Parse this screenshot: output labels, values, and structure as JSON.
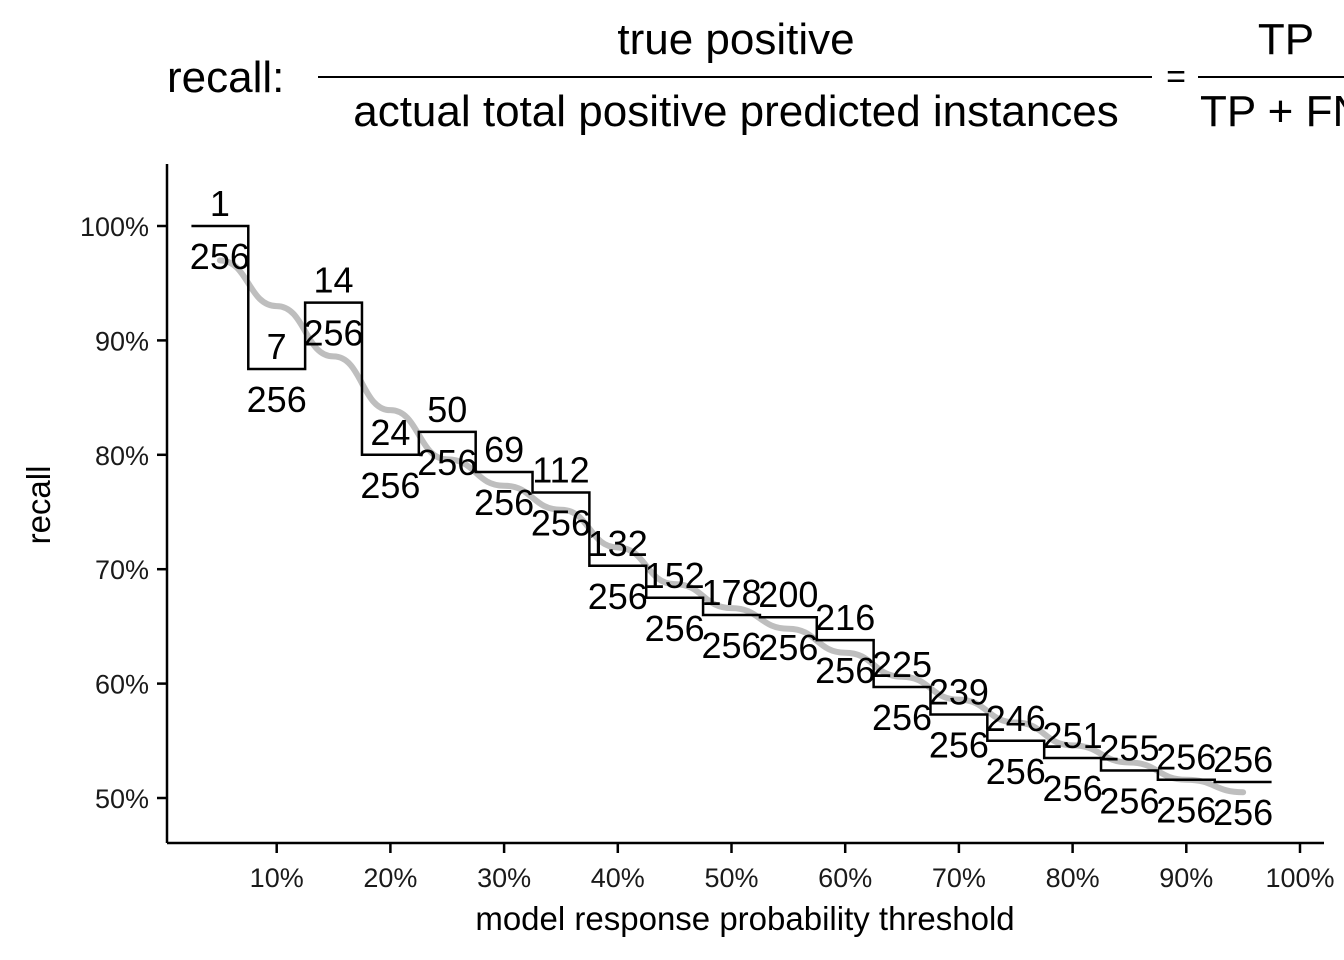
{
  "formula": {
    "prefix": "recall:",
    "numerator": "true positive",
    "denominator": "actual total positive predicted instances",
    "equals": "=",
    "rhs_numerator": "TP",
    "rhs_denominator": "TP + FN"
  },
  "chart_data": {
    "type": "line",
    "title": "recall: true positive / actual total positive predicted instances = TP / (TP + FN)",
    "xlabel": "model response probability threshold",
    "ylabel": "recall",
    "xlim": [
      0,
      1.0
    ],
    "ylim": [
      0.46,
      1.05
    ],
    "x_ticks": [
      0.1,
      0.2,
      0.3,
      0.4,
      0.5,
      0.6,
      0.7,
      0.8,
      0.9,
      1.0
    ],
    "x_tick_labels": [
      "10%",
      "20%",
      "30%",
      "40%",
      "50%",
      "60%",
      "70%",
      "80%",
      "90%",
      "100%"
    ],
    "y_ticks": [
      0.5,
      0.6,
      0.7,
      0.8,
      0.9,
      1.0
    ],
    "y_tick_labels": [
      "50%",
      "60%",
      "70%",
      "80%",
      "90%",
      "100%"
    ],
    "grid": false,
    "legend": "none",
    "series": [
      {
        "kind": "step",
        "color": "#000000",
        "thresholds": [
          0.05,
          0.1,
          0.15,
          0.2,
          0.25,
          0.3,
          0.35,
          0.4,
          0.45,
          0.5,
          0.55,
          0.6,
          0.65,
          0.7,
          0.75,
          0.8,
          0.85,
          0.9,
          0.95
        ],
        "values": [
          1.0,
          0.875,
          0.933,
          0.8,
          0.82,
          0.785,
          0.767,
          0.703,
          0.675,
          0.66,
          0.658,
          0.638,
          0.597,
          0.573,
          0.55,
          0.535,
          0.524,
          0.516,
          0.514
        ],
        "label_numerators": [
          "1",
          "7",
          "14",
          "24",
          "50",
          "69",
          "112",
          "132",
          "152",
          "178",
          "200",
          "216",
          "225",
          "239",
          "246",
          "251",
          "255",
          "256",
          "256"
        ],
        "label_denominators": [
          "256",
          "256",
          "256",
          "256",
          "256",
          "256",
          "256",
          "256",
          "256",
          "256",
          "256",
          "256",
          "256",
          "256",
          "256",
          "256",
          "256",
          "256",
          "256"
        ]
      },
      {
        "kind": "smooth",
        "color": "#bebebe",
        "x": [
          0.05,
          0.1,
          0.15,
          0.2,
          0.25,
          0.3,
          0.35,
          0.4,
          0.45,
          0.5,
          0.55,
          0.6,
          0.65,
          0.7,
          0.75,
          0.8,
          0.85,
          0.9,
          0.95
        ],
        "values": [
          0.97,
          0.93,
          0.886,
          0.839,
          0.796,
          0.773,
          0.752,
          0.719,
          0.687,
          0.666,
          0.648,
          0.627,
          0.606,
          0.586,
          0.566,
          0.546,
          0.531,
          0.516,
          0.505
        ]
      }
    ]
  }
}
